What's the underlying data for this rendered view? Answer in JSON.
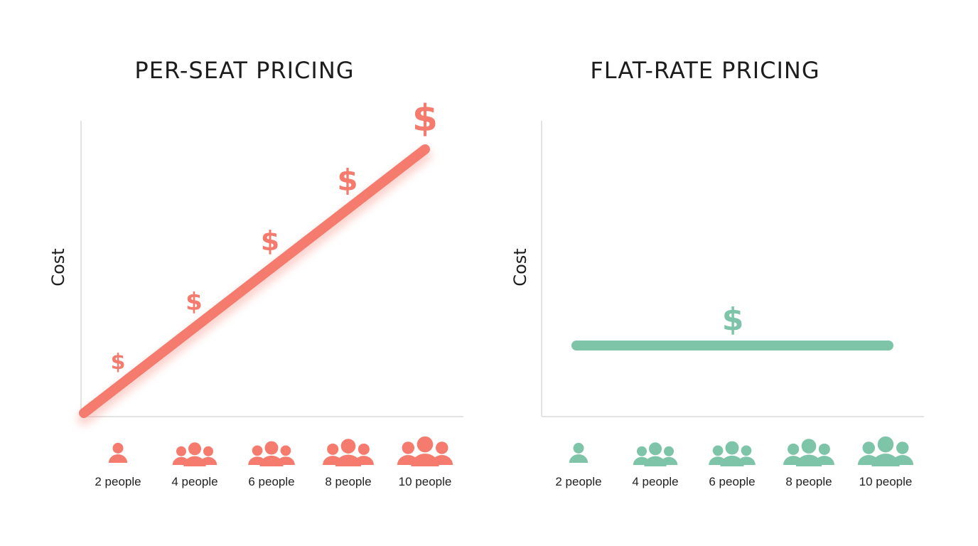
{
  "chart_data": [
    {
      "type": "line",
      "title": "PER-SEAT PRICING",
      "ylabel": "Cost",
      "xlabel": "",
      "categories": [
        "2 people",
        "4 people",
        "6 people",
        "8 people",
        "10 people"
      ],
      "x": [
        2,
        4,
        6,
        8,
        10
      ],
      "series": [
        {
          "values": [
            1,
            2,
            3,
            4,
            5
          ]
        }
      ],
      "point_labels": [
        "$",
        "$",
        "$",
        "$",
        "$"
      ],
      "ylim": [
        0,
        5.5
      ],
      "color": "#f47b6e",
      "grid": false
    },
    {
      "type": "line",
      "title": "FLAT-RATE PRICING",
      "ylabel": "Cost",
      "xlabel": "",
      "categories": [
        "2 people",
        "4 people",
        "6 people",
        "8 people",
        "10 people"
      ],
      "x": [
        2,
        4,
        6,
        8,
        10
      ],
      "series": [
        {
          "values": [
            1.5,
            1.5,
            1.5,
            1.5,
            1.5
          ]
        }
      ],
      "point_labels": [
        "$"
      ],
      "ylim": [
        0,
        5.5
      ],
      "color": "#7ec4a9",
      "grid": false
    }
  ]
}
